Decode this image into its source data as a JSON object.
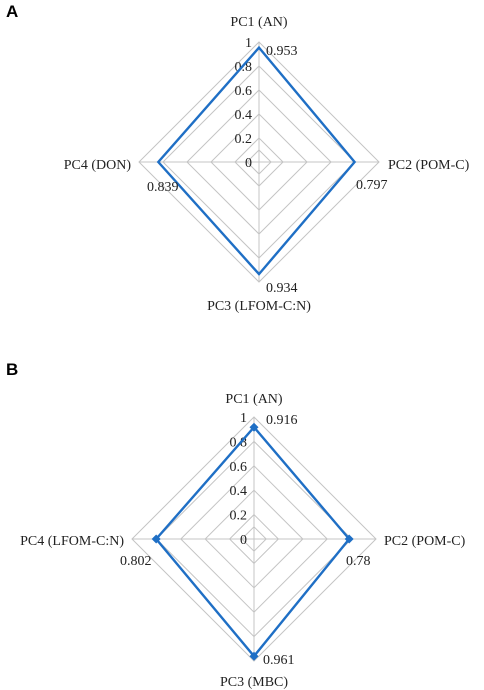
{
  "chart_data": [
    {
      "type": "radar",
      "panel_label": "A",
      "axes": [
        "PC1 (AN)",
        "PC2 (POM-C)",
        "PC3 (LFOM-C:N)",
        "PC4 (DON)"
      ],
      "values": [
        0.953,
        0.797,
        0.934,
        0.839
      ],
      "value_labels": [
        "0.953",
        "0.797",
        "0.934",
        "0.839"
      ],
      "ticks": [
        "0",
        "0.2",
        "0.4",
        "0.6",
        "0.8",
        "1"
      ],
      "range": [
        0,
        1
      ],
      "markers": false,
      "series_color": "#1f6fc5",
      "grid_color": "#c4c4c4"
    },
    {
      "type": "radar",
      "panel_label": "B",
      "axes": [
        "PC1 (AN)",
        "PC2 (POM-C)",
        "PC3 (MBC)",
        "PC4 (LFOM-C:N)"
      ],
      "values": [
        0.916,
        0.78,
        0.961,
        0.802
      ],
      "value_labels": [
        "0.916",
        "0.78",
        "0.961",
        "0.802"
      ],
      "ticks": [
        "0",
        "0.2",
        "0.4",
        "0.6",
        "0.8",
        "1"
      ],
      "range": [
        0,
        1
      ],
      "markers": true,
      "series_color": "#1f6fc5",
      "grid_color": "#c4c4c4"
    }
  ]
}
